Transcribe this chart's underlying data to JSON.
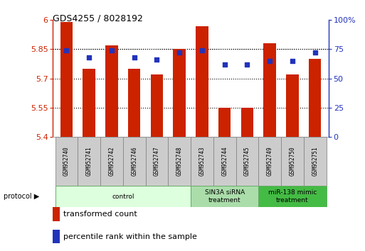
{
  "title": "GDS4255 / 8028192",
  "samples": [
    "GSM952740",
    "GSM952741",
    "GSM952742",
    "GSM952746",
    "GSM952747",
    "GSM952748",
    "GSM952743",
    "GSM952744",
    "GSM952745",
    "GSM952749",
    "GSM952750",
    "GSM952751"
  ],
  "bar_values": [
    5.99,
    5.75,
    5.87,
    5.75,
    5.72,
    5.85,
    5.97,
    5.55,
    5.55,
    5.88,
    5.72,
    5.8
  ],
  "dot_values": [
    74,
    68,
    74,
    68,
    66,
    72,
    74,
    62,
    62,
    65,
    65,
    72
  ],
  "bar_color": "#cc2200",
  "dot_color": "#2233bb",
  "ylim_left": [
    5.4,
    6.0
  ],
  "ylim_right": [
    0,
    100
  ],
  "yticks_left": [
    5.4,
    5.55,
    5.7,
    5.85,
    6.0
  ],
  "yticks_right": [
    0,
    25,
    50,
    75,
    100
  ],
  "ytick_labels_left": [
    "5.4",
    "5.55",
    "5.7",
    "5.85",
    "6"
  ],
  "ytick_labels_right": [
    "0",
    "25",
    "50",
    "75",
    "100%"
  ],
  "groups": [
    {
      "label": "control",
      "start": 0,
      "end": 6,
      "color": "#ddffdd",
      "edgecolor": "#66aa66"
    },
    {
      "label": "SIN3A siRNA\ntreatment",
      "start": 6,
      "end": 9,
      "color": "#aaddaa",
      "edgecolor": "#66aa66"
    },
    {
      "label": "miR-138 mimic\ntreatment",
      "start": 9,
      "end": 12,
      "color": "#44bb44",
      "edgecolor": "#66aa66"
    }
  ],
  "legend_bar_label": "transformed count",
  "legend_dot_label": "percentile rank within the sample",
  "protocol_label": "protocol",
  "grid_color": "#000000",
  "background_color": "#ffffff",
  "bar_width": 0.55,
  "label_box_color": "#cccccc",
  "label_box_edge": "#888888"
}
